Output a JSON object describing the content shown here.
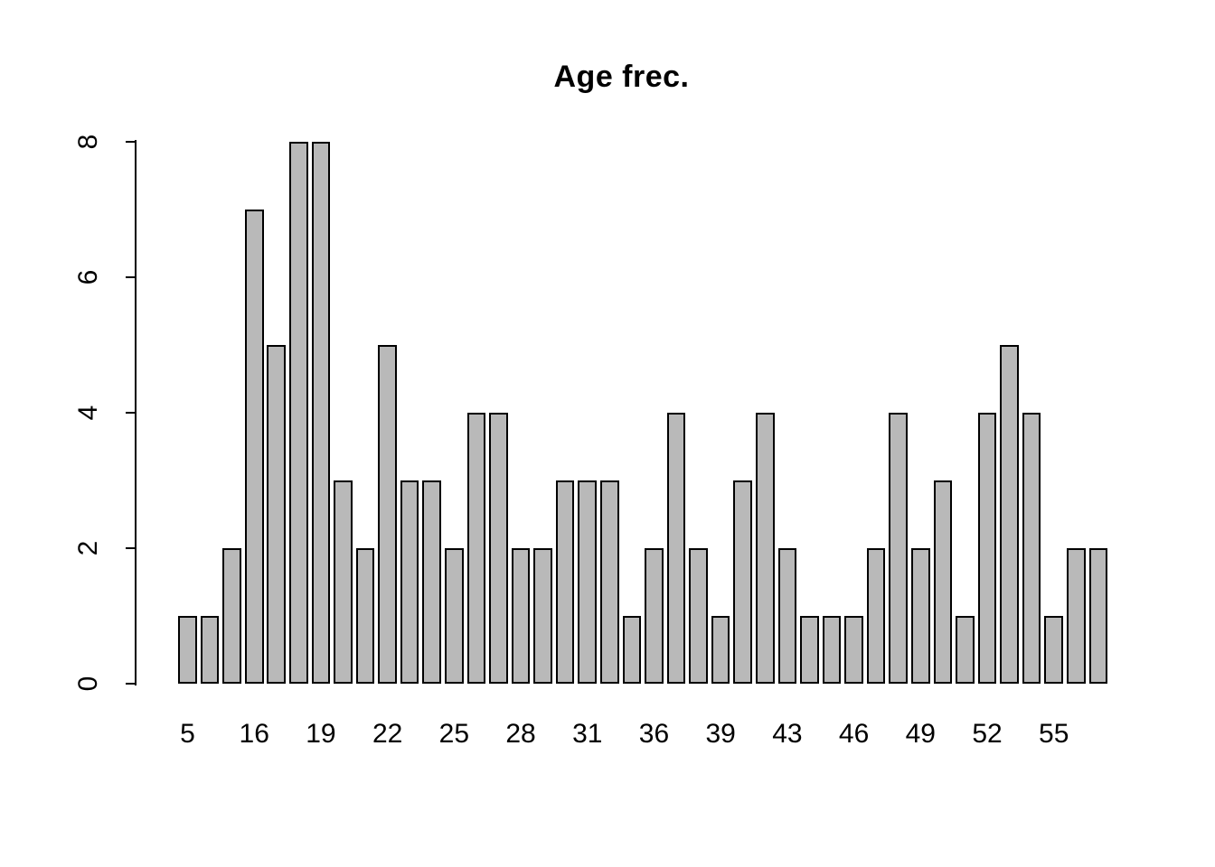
{
  "chart_data": {
    "type": "bar",
    "title": "Age frec.",
    "xlabel": "",
    "ylabel": "",
    "values": [
      1,
      1,
      2,
      7,
      5,
      8,
      8,
      3,
      2,
      5,
      3,
      3,
      2,
      4,
      4,
      2,
      2,
      3,
      3,
      3,
      1,
      2,
      4,
      2,
      1,
      3,
      4,
      2,
      1,
      1,
      1,
      2,
      4,
      2,
      3,
      1,
      4,
      5,
      4,
      1,
      2,
      2
    ],
    "x_tick_labels": [
      "5",
      "16",
      "19",
      "22",
      "25",
      "28",
      "31",
      "36",
      "39",
      "43",
      "46",
      "49",
      "52",
      "55"
    ],
    "x_tick_bar_indexes": [
      0,
      3,
      6,
      9,
      12,
      15,
      18,
      21,
      24,
      27,
      30,
      33,
      36,
      39
    ],
    "y_ticks": [
      0,
      2,
      4,
      6,
      8
    ],
    "ylim": [
      0,
      8
    ],
    "bar_count": 42,
    "grid": false,
    "legend": false,
    "bar_fill_color": "#b9b9b9",
    "bar_border_color": "#000000",
    "background_color": "#ffffff",
    "text_color": "#000000"
  }
}
